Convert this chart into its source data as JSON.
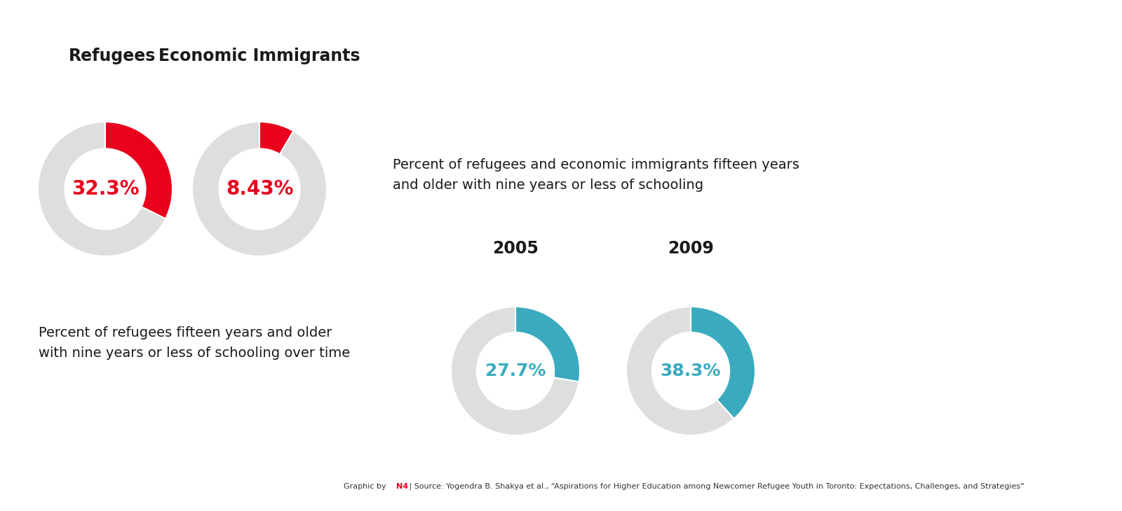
{
  "chart1_value": 32.3,
  "chart1_label": "32.3%",
  "chart1_title": "Refugees",
  "chart2_value": 8.43,
  "chart2_label": "8.43%",
  "chart2_title": "Economic Immigrants",
  "chart3_value": 27.7,
  "chart3_label": "27.7%",
  "chart3_year": "2005",
  "chart4_value": 38.3,
  "chart4_label": "38.3%",
  "chart4_year": "2009",
  "red_color": "#E8001C",
  "teal_color": "#3AABBF",
  "gray_color": "#DEDEDE",
  "text_color_dark": "#1a1a1a",
  "top_right_text": "Percent of refugees and economic immigrants fifteen years\nand older with nine years or less of schooling",
  "bottom_left_text": "Percent of refugees fifteen years and older\nwith nine years or less of schooling over time",
  "footer_source": "Source: Yogendra B. Shakya et al., “Aspirations for Higher Education among Newcomer Refugee Youth in Toronto: Expectations, Challenges, and Strategies”",
  "bg_color": "#FFFFFF"
}
